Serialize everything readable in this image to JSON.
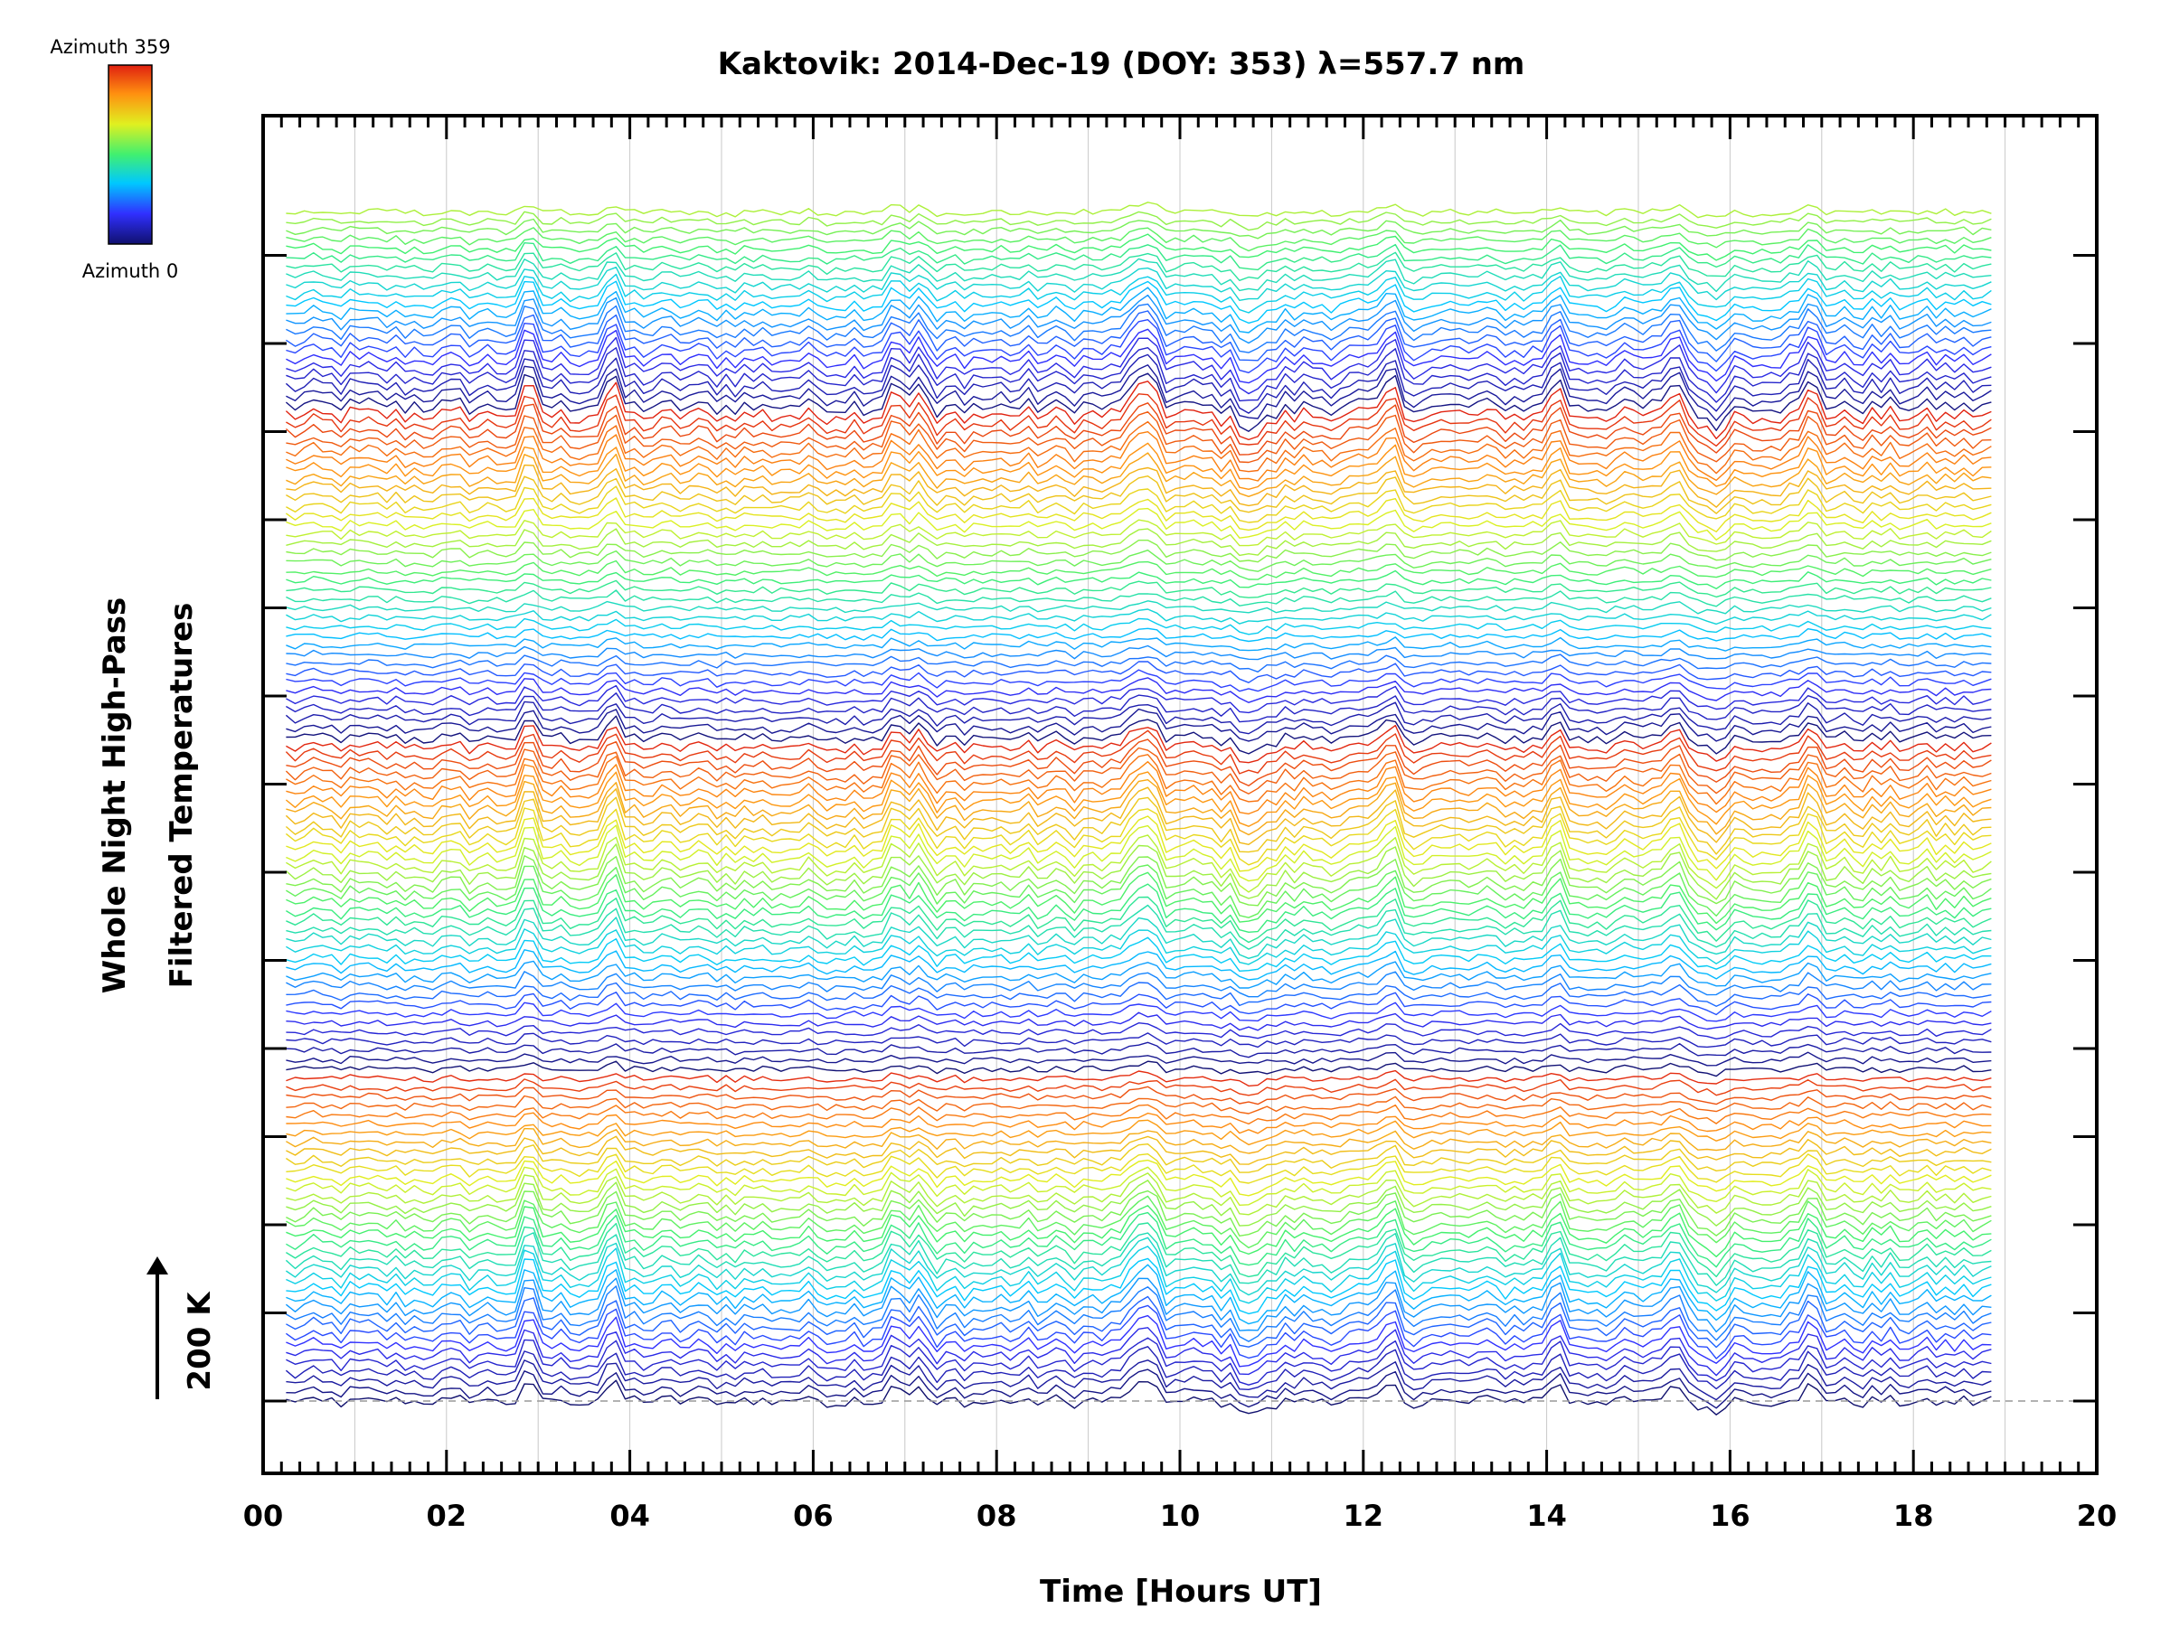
{
  "chart_data": {
    "type": "line",
    "title": "Kaktovik: 2014-Dec-19 (DOY: 353) λ=557.7 nm",
    "xlabel": "Time [Hours UT]",
    "ylabel_lines": [
      "Whole Night High-Pass",
      "Filtered Temperatures"
    ],
    "scale_bar_label": "200 K",
    "xlim": [
      0,
      20
    ],
    "x_ticks": [
      "00",
      "02",
      "04",
      "06",
      "08",
      "10",
      "12",
      "14",
      "16",
      "18",
      "20"
    ],
    "x_tick_values": [
      0,
      2,
      4,
      6,
      8,
      10,
      12,
      14,
      16,
      18,
      20
    ],
    "y_tick_labels_shown": false,
    "grid": "vertical, every hour",
    "legend": {
      "type": "colorbar",
      "placement": "top-left",
      "top_label": "Azimuth 359",
      "bottom_label": "Azimuth 0",
      "colormap": [
        "#10106e",
        "#3030ff",
        "#00c8ff",
        "#40f070",
        "#e0f020",
        "#ff9010",
        "#e02010"
      ]
    },
    "series_summary": {
      "stacked_traces": "approx. 130 azimuth traces, each vertically offset",
      "time_range_hours": [
        0.25,
        18.9
      ],
      "baseline_style": "dashed grey line at lowest trace",
      "notable_peaks_hours": [
        2.9,
        3.8,
        6.9,
        7.2,
        9.5,
        9.7,
        12.3,
        14.1,
        15.4,
        16.9
      ]
    }
  }
}
